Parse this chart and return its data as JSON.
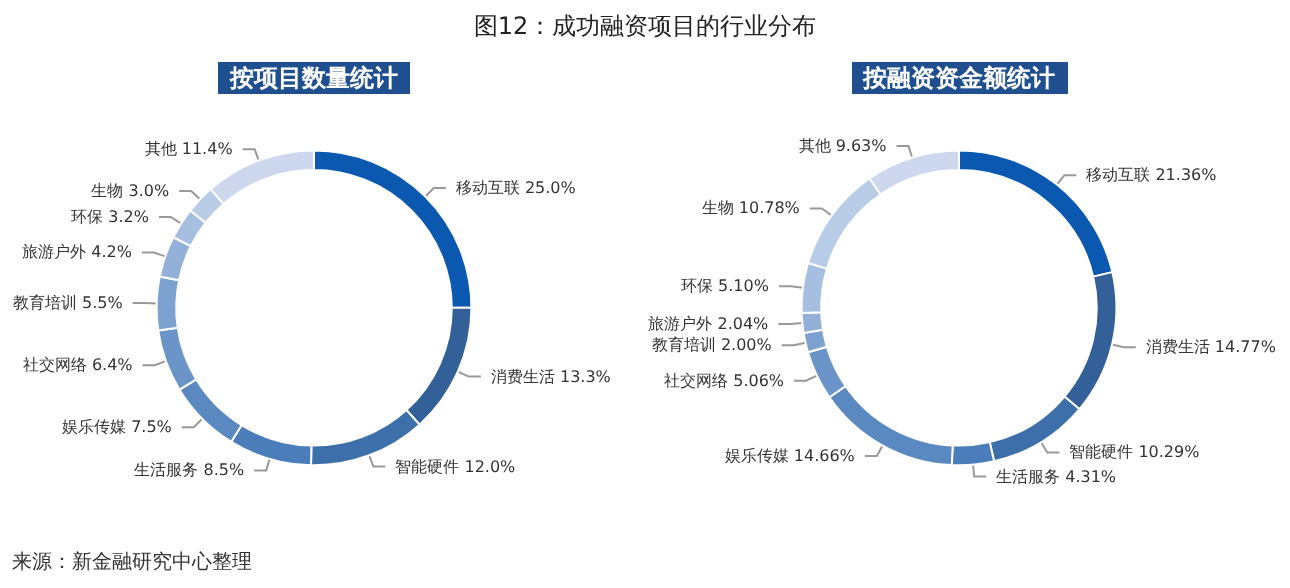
{
  "chart_data": [
    {
      "type": "donut",
      "title": "图12：成功融资项目的行业分布",
      "subtitle": "按项目数量统计",
      "annotations": [
        "来源：新金融研究中心整理"
      ],
      "categories": [
        "移动互联",
        "消费生活",
        "智能硬件",
        "生活服务",
        "娱乐传媒",
        "社交网络",
        "教育培训",
        "旅游户外",
        "环保",
        "生物",
        "其他"
      ],
      "values": [
        25.0,
        13.3,
        12.0,
        8.5,
        7.5,
        6.4,
        5.5,
        4.2,
        3.2,
        3.0,
        11.4
      ],
      "value_labels": [
        "25.0%",
        "13.3%",
        "12.0%",
        "8.5%",
        "7.5%",
        "6.4%",
        "5.5%",
        "4.2%",
        "3.2%",
        "3.0%",
        "11.4%"
      ],
      "colors": [
        "#0a58b0",
        "#34609a",
        "#3d6faa",
        "#4a7dba",
        "#5a89c2",
        "#6b95c9",
        "#7ea2d0",
        "#93b1d8",
        "#a6bfe0",
        "#b9cce7",
        "#cdd8ee"
      ],
      "legend": false
    },
    {
      "type": "donut",
      "subtitle": "按融资资金额统计",
      "categories": [
        "移动互联",
        "消费生活",
        "智能硬件",
        "生活服务",
        "娱乐传媒",
        "社交网络",
        "教育培训",
        "旅游户外",
        "环保",
        "生物",
        "其他"
      ],
      "values": [
        21.36,
        14.77,
        10.29,
        4.31,
        14.66,
        5.06,
        2.0,
        2.04,
        5.1,
        10.78,
        9.63
      ],
      "value_labels": [
        "21.36%",
        "14.77%",
        "10.29%",
        "4.31%",
        "14.66%",
        "5.06%",
        "2.00%",
        "2.04%",
        "5.10%",
        "10.78%",
        "9.63%"
      ],
      "colors": [
        "#0a58b0",
        "#34609a",
        "#3d6faa",
        "#4a7dba",
        "#5a89c2",
        "#6b95c9",
        "#7ea2d0",
        "#93b1d8",
        "#a6bfe0",
        "#b9cce7",
        "#cdd8ee"
      ],
      "legend": false
    }
  ]
}
